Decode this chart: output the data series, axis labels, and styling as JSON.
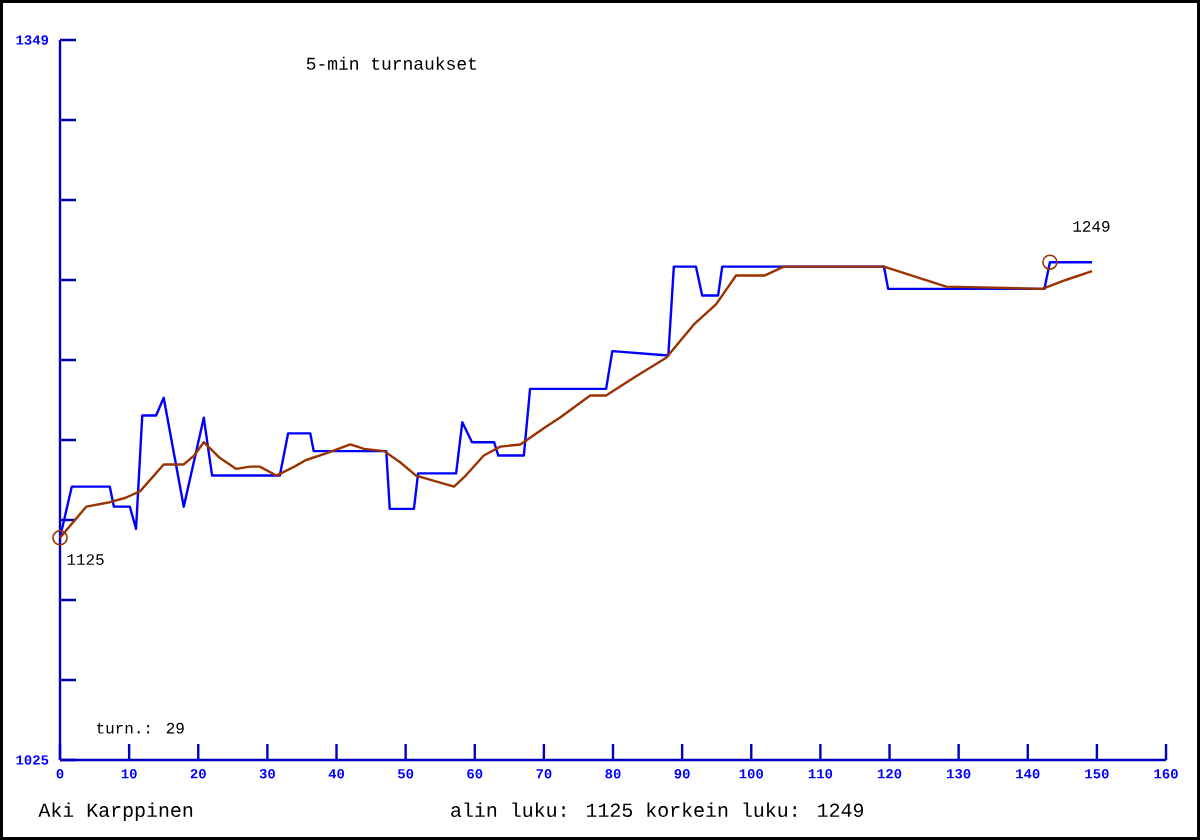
{
  "chart_data": {
    "type": "line",
    "title": "5-min turnaukset",
    "xlim": [
      0,
      160
    ],
    "xticks": [
      0,
      10,
      20,
      30,
      40,
      50,
      60,
      70,
      80,
      90,
      100,
      110,
      120,
      130,
      140,
      150,
      160
    ],
    "ylim": [
      1025,
      1349
    ],
    "yticks": [
      1025,
      {
        "value": 1061,
        "label": null
      },
      {
        "value": 1097,
        "label": null
      },
      {
        "value": 1133,
        "label": null
      },
      {
        "value": 1169,
        "label": null
      },
      {
        "value": 1205,
        "label": null
      },
      {
        "value": 1241,
        "label": null
      },
      {
        "value": 1277,
        "label": null
      },
      {
        "value": 1313,
        "label": null
      },
      1349
    ],
    "series": [
      {
        "color": "#0000ff",
        "x": [
          0,
          1.7,
          7.2,
          7.8,
          10.1,
          11.0,
          11.9,
          13.9,
          15.0,
          17.9,
          20.8,
          22.0,
          31.8,
          33.0,
          36.2,
          36.7,
          47.2,
          47.7,
          51.2,
          51.8,
          57.3,
          58.2,
          59.6,
          62.8,
          63.4,
          67.1,
          68.0,
          79.0,
          79.9,
          88.0,
          88.8,
          92.0,
          92.9,
          95.2,
          95.8,
          119.2,
          119.8,
          142.4,
          143.2,
          149.3
        ],
        "values": [
          1125,
          1148,
          1148,
          1139,
          1139,
          1129,
          1180,
          1180,
          1188,
          1139,
          1179,
          1153,
          1153,
          1172,
          1172,
          1164,
          1164,
          1138,
          1138,
          1154,
          1154,
          1177,
          1168,
          1168,
          1162,
          1162,
          1192,
          1192,
          1209,
          1207,
          1247,
          1247,
          1234,
          1234,
          1247,
          1247,
          1237,
          1237,
          1249,
          1249
        ]
      },
      {
        "color": "#993300",
        "x": [
          0,
          3.8,
          7.2,
          9.5,
          11.6,
          15.0,
          17.9,
          19.4,
          20.8,
          23.1,
          25.5,
          27.5,
          28.9,
          31.3,
          33.9,
          35.6,
          38.5,
          42.0,
          44.0,
          46.9,
          49.2,
          51.5,
          57.0,
          58.7,
          61.3,
          63.7,
          66.6,
          70.3,
          72.3,
          76.7,
          79.0,
          83.0,
          87.7,
          91.7,
          94.9,
          97.8,
          101.9,
          104.7,
          119.2,
          128.2,
          142.1,
          145.5,
          149.3
        ],
        "values": [
          1125,
          1139,
          1141,
          1143,
          1146,
          1158,
          1158,
          1162,
          1168,
          1161,
          1156,
          1157,
          1157,
          1153,
          1157,
          1160,
          1163,
          1167,
          1165,
          1164,
          1159,
          1153,
          1148,
          1153,
          1162,
          1166,
          1167,
          1175,
          1179,
          1189,
          1189,
          1197,
          1206,
          1221,
          1230,
          1243,
          1243,
          1247,
          1247,
          1238,
          1237,
          1241,
          1245
        ]
      },
      {
        "type": "scatter",
        "marker": "circle",
        "color": "#993300",
        "x": [
          0,
          143.2
        ],
        "values": [
          1125,
          1249
        ]
      }
    ],
    "annotations": [
      {
        "text": "1125",
        "x": 0,
        "y": 1125
      },
      {
        "text": "1249",
        "x": 143.2,
        "y": 1249
      },
      "turn.: 29",
      "Aki Karppinen",
      "alin luku: 1125  korkein luku: 1249"
    ]
  }
}
